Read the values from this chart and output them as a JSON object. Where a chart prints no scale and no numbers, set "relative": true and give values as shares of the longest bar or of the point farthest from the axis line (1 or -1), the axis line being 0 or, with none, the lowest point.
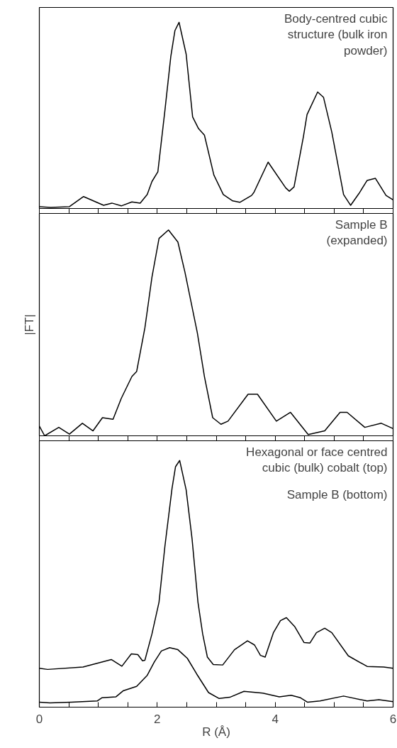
{
  "chart_data": [
    {
      "type": "line",
      "relative": true,
      "xlim": [
        0,
        6
      ],
      "xticks": [
        {
          "value": 0,
          "label": null
        },
        {
          "value": 0.5,
          "label": null
        },
        {
          "value": 1,
          "label": null
        },
        {
          "value": 1.5,
          "label": null
        },
        {
          "value": 2,
          "label": null
        },
        {
          "value": 2.5,
          "label": null
        },
        {
          "value": 3,
          "label": null
        },
        {
          "value": 3.5,
          "label": null
        },
        {
          "value": 4,
          "label": null
        },
        {
          "value": 4.5,
          "label": null
        },
        {
          "value": 5,
          "label": null
        },
        {
          "value": 5.5,
          "label": null
        },
        {
          "value": 6,
          "label": null
        }
      ],
      "tick_labels": false,
      "annotations": [
        "Body-centred cubic\nstructure (bulk iron\npowder)"
      ],
      "series": [
        {
          "color": "#000000",
          "x": [
            0,
            0.19,
            0.51,
            0.75,
            1.09,
            1.23,
            1.39,
            1.57,
            1.71,
            1.83,
            1.91,
            2.01,
            2.13,
            2.23,
            2.3,
            2.37,
            2.49,
            2.6,
            2.7,
            2.8,
            2.96,
            3.12,
            3.28,
            3.4,
            3.6,
            3.64,
            3.88,
            4.18,
            4.24,
            4.32,
            4.48,
            4.54,
            4.72,
            4.82,
            4.96,
            5.16,
            5.28,
            5.42,
            5.56,
            5.7,
            5.88,
            6.0
          ],
          "values": [
            0.01,
            0.006,
            0.01,
            0.064,
            0.017,
            0.029,
            0.014,
            0.035,
            0.029,
            0.075,
            0.145,
            0.197,
            0.527,
            0.817,
            0.956,
            1.0,
            0.829,
            0.492,
            0.429,
            0.394,
            0.18,
            0.075,
            0.041,
            0.033,
            0.07,
            0.087,
            0.249,
            0.11,
            0.093,
            0.116,
            0.388,
            0.504,
            0.626,
            0.597,
            0.411,
            0.075,
            0.017,
            0.08,
            0.151,
            0.162,
            0.07,
            0.046
          ]
        }
      ]
    },
    {
      "type": "line",
      "relative": true,
      "ylabel": "|FT|",
      "xlim": [
        0,
        6
      ],
      "xticks": [
        {
          "value": 0,
          "label": null
        },
        {
          "value": 0.5,
          "label": null
        },
        {
          "value": 1,
          "label": null
        },
        {
          "value": 1.5,
          "label": null
        },
        {
          "value": 2,
          "label": null
        },
        {
          "value": 2.5,
          "label": null
        },
        {
          "value": 3,
          "label": null
        },
        {
          "value": 3.5,
          "label": null
        },
        {
          "value": 4,
          "label": null
        },
        {
          "value": 4.5,
          "label": null
        },
        {
          "value": 5,
          "label": null
        },
        {
          "value": 5.5,
          "label": null
        },
        {
          "value": 6,
          "label": null
        }
      ],
      "tick_labels": false,
      "annotations": [
        "Sample B\n(expanded)"
      ],
      "series": [
        {
          "color": "#000000",
          "x": [
            0,
            0.09,
            0.33,
            0.51,
            0.73,
            0.91,
            1.07,
            1.25,
            1.39,
            1.57,
            1.65,
            1.79,
            1.85,
            1.91,
            2.03,
            2.19,
            2.35,
            2.47,
            2.68,
            2.8,
            2.94,
            3.08,
            3.2,
            3.54,
            3.7,
            4.02,
            4.26,
            4.56,
            4.84,
            5.1,
            5.22,
            5.52,
            5.8,
            6.0
          ],
          "values": [
            0.047,
            0,
            0.041,
            0.008,
            0.061,
            0.024,
            0.088,
            0.08,
            0.182,
            0.288,
            0.312,
            0.524,
            0.647,
            0.771,
            0.959,
            1.0,
            0.941,
            0.794,
            0.5,
            0.288,
            0.088,
            0.056,
            0.071,
            0.202,
            0.202,
            0.071,
            0.114,
            0.006,
            0.024,
            0.114,
            0.114,
            0.041,
            0.061,
            0.035
          ]
        }
      ]
    },
    {
      "type": "line",
      "relative": true,
      "xlabel": "R (Å)",
      "xlim": [
        0,
        6
      ],
      "xticks": [
        0,
        {
          "value": 0.5,
          "label": null
        },
        {
          "value": 1,
          "label": null
        },
        {
          "value": 1.5,
          "label": null
        },
        2,
        {
          "value": 2.5,
          "label": null
        },
        {
          "value": 3,
          "label": null
        },
        {
          "value": 3.5,
          "label": null
        },
        4,
        {
          "value": 4.5,
          "label": null
        },
        {
          "value": 5,
          "label": null
        },
        {
          "value": 5.5,
          "label": null
        },
        6
      ],
      "tick_labels": "x",
      "annotations": [
        "Hexagonal or face centred\ncubic (bulk) cobalt (top)",
        "Sample B (bottom)"
      ],
      "series": [
        {
          "color": "#000000",
          "x": [
            0,
            0.14,
            0.74,
            1.22,
            1.4,
            1.56,
            1.67,
            1.75,
            1.79,
            1.91,
            2.03,
            2.13,
            2.25,
            2.31,
            2.38,
            2.49,
            2.59,
            2.69,
            2.77,
            2.85,
            2.95,
            3.11,
            3.31,
            3.53,
            3.65,
            3.75,
            3.83,
            3.97,
            4.09,
            4.19,
            4.33,
            4.49,
            4.59,
            4.7,
            4.84,
            4.96,
            5.24,
            5.56,
            5.84,
            6.0
          ],
          "values": [
            0.158,
            0.153,
            0.163,
            0.193,
            0.166,
            0.216,
            0.213,
            0.188,
            0.19,
            0.297,
            0.426,
            0.653,
            0.886,
            0.975,
            1.0,
            0.881,
            0.683,
            0.426,
            0.297,
            0.203,
            0.173,
            0.171,
            0.233,
            0.269,
            0.252,
            0.21,
            0.203,
            0.302,
            0.351,
            0.363,
            0.327,
            0.262,
            0.26,
            0.302,
            0.32,
            0.302,
            0.208,
            0.165,
            0.163,
            0.158
          ]
        },
        {
          "color": "#000000",
          "x": [
            0,
            0.18,
            0.54,
            0.98,
            1.06,
            1.3,
            1.42,
            1.65,
            1.83,
            1.95,
            2.07,
            2.21,
            2.35,
            2.51,
            2.67,
            2.87,
            3.05,
            3.23,
            3.47,
            3.79,
            4.07,
            4.27,
            4.43,
            4.55,
            4.76,
            5.16,
            5.56,
            5.76,
            6.0
          ],
          "values": [
            0.02,
            0.017,
            0.02,
            0.025,
            0.038,
            0.042,
            0.066,
            0.084,
            0.129,
            0.183,
            0.228,
            0.241,
            0.233,
            0.198,
            0.134,
            0.059,
            0.035,
            0.04,
            0.064,
            0.057,
            0.042,
            0.048,
            0.038,
            0.02,
            0.025,
            0.045,
            0.025,
            0.03,
            0.022
          ]
        }
      ]
    }
  ]
}
